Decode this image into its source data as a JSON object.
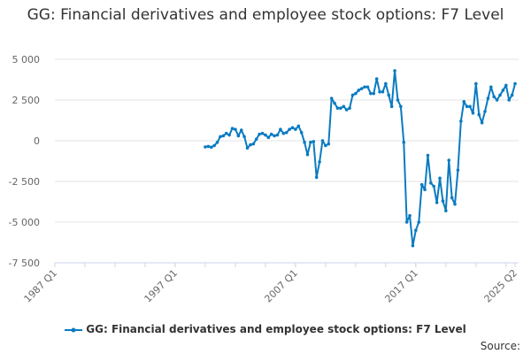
{
  "chart_data": {
    "type": "line",
    "title": "GG: Financial derivatives and employee stock options: F7 Level",
    "xlabel": "",
    "ylabel": "",
    "ylim": [
      -7500,
      5000
    ],
    "yticks": [
      5000,
      2500,
      0,
      -2500,
      -5000,
      -7500
    ],
    "ytick_labels": [
      "5 000",
      "2 500",
      "0",
      "-2 500",
      "-5 000",
      "-7 500"
    ],
    "xlim": [
      "1987 Q1",
      "2025 Q2"
    ],
    "xtick_labels": [
      "1987 Q1",
      "1997 Q1",
      "2007 Q1",
      "2017 Q1",
      "2025 Q2"
    ],
    "grid": true,
    "legend_position": "bottom",
    "color": "#0a7bc1",
    "series": [
      {
        "name": "GG: Financial derivatives and employee stock options: F7 Level",
        "start": "1999 Q3",
        "frequency": "quarterly",
        "values": [
          -380,
          -350,
          -400,
          -300,
          -100,
          250,
          300,
          450,
          350,
          750,
          700,
          300,
          650,
          250,
          -450,
          -250,
          -200,
          100,
          400,
          450,
          350,
          200,
          400,
          300,
          350,
          700,
          450,
          500,
          700,
          800,
          700,
          900,
          500,
          -100,
          -850,
          -100,
          -50,
          -2250,
          -1300,
          0,
          -300,
          -200,
          2600,
          2300,
          2000,
          2000,
          2100,
          1900,
          2000,
          2800,
          2900,
          3100,
          3200,
          3300,
          3300,
          2900,
          2900,
          3800,
          3000,
          3000,
          3500,
          2800,
          2100,
          4300,
          2500,
          2100,
          -100,
          -5000,
          -4600,
          -6450,
          -5500,
          -5000,
          -2700,
          -3000,
          -900,
          -2600,
          -2800,
          -3800,
          -2300,
          -3700,
          -4300,
          -1200,
          -3500,
          -3900,
          -1800,
          1200,
          2400,
          2100,
          2100,
          1700,
          3500,
          1600,
          1100,
          1800,
          2600,
          3300,
          2700,
          2500,
          2800,
          3100,
          3400,
          2500,
          2800,
          3500
        ]
      }
    ]
  },
  "source_label": "Source:"
}
